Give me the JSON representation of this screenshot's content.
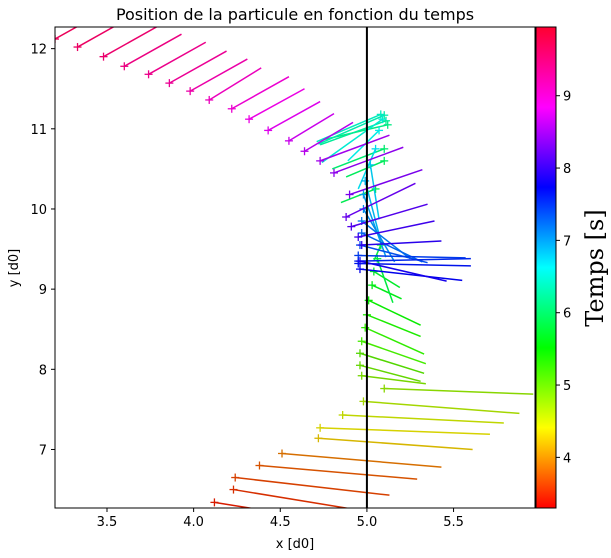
{
  "chart_data": {
    "type": "scatter",
    "title": "Position de la particule en fonction du temps",
    "xlabel": "x [d0]",
    "ylabel": "y [d0]",
    "xlim": [
      3.2,
      5.97
    ],
    "ylim": [
      6.27,
      12.27
    ],
    "xticks": [
      "3.5",
      "4.0",
      "4.5",
      "5.0",
      "5.5"
    ],
    "yticks": [
      "7",
      "8",
      "9",
      "10",
      "11",
      "12"
    ],
    "vline_x": 5.0,
    "marker": "+",
    "colorbar": {
      "label": "Temps [s]",
      "colormap": "hsv",
      "range": [
        3.3,
        9.95
      ],
      "ticks": [
        "4",
        "5",
        "6",
        "7",
        "8",
        "9"
      ]
    },
    "points": [
      {
        "t": 3.45,
        "x": 4.12,
        "y": 6.34,
        "dx": 1.07,
        "dy": -0.37
      },
      {
        "t": 3.55,
        "x": 4.23,
        "y": 6.5,
        "dx": 0.93,
        "dy": -0.33
      },
      {
        "t": 3.65,
        "x": 4.24,
        "y": 6.65,
        "dx": 0.89,
        "dy": -0.22
      },
      {
        "t": 3.75,
        "x": 4.38,
        "y": 6.8,
        "dx": 0.91,
        "dy": -0.17
      },
      {
        "t": 3.9,
        "x": 4.51,
        "y": 6.95,
        "dx": 0.92,
        "dy": -0.17
      },
      {
        "t": 4.3,
        "x": 4.72,
        "y": 7.14,
        "dx": 0.89,
        "dy": -0.14
      },
      {
        "t": 4.45,
        "x": 4.73,
        "y": 7.27,
        "dx": 0.98,
        "dy": -0.08
      },
      {
        "t": 4.6,
        "x": 4.86,
        "y": 7.43,
        "dx": 0.93,
        "dy": -0.1
      },
      {
        "t": 4.75,
        "x": 4.98,
        "y": 7.6,
        "dx": 0.9,
        "dy": -0.15
      },
      {
        "t": 4.9,
        "x": 5.1,
        "y": 7.76,
        "dx": 0.86,
        "dy": -0.07
      },
      {
        "t": 5.0,
        "x": 4.97,
        "y": 7.92,
        "dx": 0.37,
        "dy": -0.1
      },
      {
        "t": 5.1,
        "x": 4.96,
        "y": 8.05,
        "dx": 0.35,
        "dy": -0.2
      },
      {
        "t": 5.2,
        "x": 4.96,
        "y": 8.2,
        "dx": 0.37,
        "dy": -0.25
      },
      {
        "t": 5.3,
        "x": 4.97,
        "y": 8.35,
        "dx": 0.37,
        "dy": -0.28
      },
      {
        "t": 5.4,
        "x": 4.99,
        "y": 8.52,
        "dx": 0.34,
        "dy": -0.33
      },
      {
        "t": 5.5,
        "x": 5.0,
        "y": 8.68,
        "dx": 0.31,
        "dy": -0.27
      },
      {
        "t": 5.6,
        "x": 5.01,
        "y": 8.86,
        "dx": 0.3,
        "dy": -0.31
      },
      {
        "t": 5.75,
        "x": 5.03,
        "y": 9.05,
        "dx": 0.17,
        "dy": -0.17
      },
      {
        "t": 5.85,
        "x": 5.04,
        "y": 9.22,
        "dx": 0.15,
        "dy": -0.2
      },
      {
        "t": 5.95,
        "x": 5.06,
        "y": 9.38,
        "dx": 0.09,
        "dy": -0.55
      },
      {
        "t": 6.0,
        "x": 5.08,
        "y": 9.55,
        "dx": -0.04,
        "dy": -0.2
      },
      {
        "t": 6.05,
        "x": 5.05,
        "y": 10.25,
        "dx": -0.2,
        "dy": -0.17
      },
      {
        "t": 6.1,
        "x": 5.1,
        "y": 10.6,
        "dx": -0.22,
        "dy": -0.2
      },
      {
        "t": 6.2,
        "x": 5.1,
        "y": 10.75,
        "dx": -0.3,
        "dy": -0.25
      },
      {
        "t": 6.3,
        "x": 5.12,
        "y": 11.05,
        "dx": -0.36,
        "dy": -0.18
      },
      {
        "t": 6.4,
        "x": 5.11,
        "y": 11.1,
        "dx": -0.38,
        "dy": -0.3
      },
      {
        "t": 6.5,
        "x": 5.1,
        "y": 11.17,
        "dx": -0.38,
        "dy": -0.36
      },
      {
        "t": 6.6,
        "x": 5.08,
        "y": 11.18,
        "dx": -0.37,
        "dy": -0.34
      },
      {
        "t": 6.7,
        "x": 5.09,
        "y": 11.12,
        "dx": -0.35,
        "dy": -0.54
      },
      {
        "t": 6.8,
        "x": 5.07,
        "y": 10.98,
        "dx": -0.18,
        "dy": -0.38
      },
      {
        "t": 6.9,
        "x": 5.05,
        "y": 10.75,
        "dx": -0.1,
        "dy": -0.5
      },
      {
        "t": 7.0,
        "x": 5.02,
        "y": 10.55,
        "dx": 0.05,
        "dy": -0.68
      },
      {
        "t": 7.1,
        "x": 4.99,
        "y": 10.35,
        "dx": 0.09,
        "dy": -0.75
      },
      {
        "t": 7.2,
        "x": 4.98,
        "y": 10.18,
        "dx": 0.13,
        "dy": -0.78
      },
      {
        "t": 7.3,
        "x": 4.98,
        "y": 10.0,
        "dx": 0.18,
        "dy": -0.66
      },
      {
        "t": 7.4,
        "x": 4.97,
        "y": 9.85,
        "dx": 0.28,
        "dy": -0.47
      },
      {
        "t": 7.5,
        "x": 4.97,
        "y": 9.7,
        "dx": 0.35,
        "dy": -0.36
      },
      {
        "t": 7.6,
        "x": 4.96,
        "y": 9.55,
        "dx": 0.39,
        "dy": -0.22
      },
      {
        "t": 7.7,
        "x": 4.95,
        "y": 9.42,
        "dx": 0.62,
        "dy": -0.03
      },
      {
        "t": 7.8,
        "x": 4.95,
        "y": 9.35,
        "dx": 0.65,
        "dy": 0.03
      },
      {
        "t": 7.9,
        "x": 4.95,
        "y": 9.32,
        "dx": 0.65,
        "dy": -0.03
      },
      {
        "t": 8.0,
        "x": 4.96,
        "y": 9.25,
        "dx": 0.59,
        "dy": -0.14
      },
      {
        "t": 8.1,
        "x": 4.96,
        "y": 9.35,
        "dx": 0.5,
        "dy": -0.25
      },
      {
        "t": 8.2,
        "x": 4.97,
        "y": 9.55,
        "dx": 0.46,
        "dy": 0.05
      },
      {
        "t": 8.3,
        "x": 4.95,
        "y": 9.65,
        "dx": 0.44,
        "dy": 0.2
      },
      {
        "t": 8.4,
        "x": 4.91,
        "y": 9.78,
        "dx": 0.44,
        "dy": 0.28
      },
      {
        "t": 8.5,
        "x": 4.88,
        "y": 9.9,
        "dx": 0.4,
        "dy": 0.42
      },
      {
        "t": 8.6,
        "x": 4.9,
        "y": 10.18,
        "dx": 0.42,
        "dy": 0.31
      },
      {
        "t": 8.7,
        "x": 4.81,
        "y": 10.45,
        "dx": 0.4,
        "dy": 0.32
      },
      {
        "t": 8.8,
        "x": 4.73,
        "y": 10.6,
        "dx": 0.4,
        "dy": 0.32
      },
      {
        "t": 8.9,
        "x": 4.64,
        "y": 10.72,
        "dx": 0.28,
        "dy": 0.36
      },
      {
        "t": 9.0,
        "x": 4.55,
        "y": 10.85,
        "dx": 0.26,
        "dy": 0.34
      },
      {
        "t": 9.1,
        "x": 4.43,
        "y": 10.98,
        "dx": 0.3,
        "dy": 0.36
      },
      {
        "t": 9.2,
        "x": 4.32,
        "y": 11.12,
        "dx": 0.32,
        "dy": 0.38
      },
      {
        "t": 9.3,
        "x": 4.22,
        "y": 11.25,
        "dx": 0.33,
        "dy": 0.4
      },
      {
        "t": 9.4,
        "x": 4.09,
        "y": 11.36,
        "dx": 0.3,
        "dy": 0.4
      },
      {
        "t": 9.5,
        "x": 3.98,
        "y": 11.47,
        "dx": 0.33,
        "dy": 0.4
      },
      {
        "t": 9.6,
        "x": 3.86,
        "y": 11.57,
        "dx": 0.33,
        "dy": 0.4
      },
      {
        "t": 9.65,
        "x": 3.74,
        "y": 11.68,
        "dx": 0.33,
        "dy": 0.4
      },
      {
        "t": 9.7,
        "x": 3.6,
        "y": 11.78,
        "dx": 0.33,
        "dy": 0.4
      },
      {
        "t": 9.8,
        "x": 3.48,
        "y": 11.9,
        "dx": 0.33,
        "dy": 0.4
      },
      {
        "t": 9.85,
        "x": 3.33,
        "y": 12.02,
        "dx": 0.33,
        "dy": 0.4
      },
      {
        "t": 9.9,
        "x": 3.2,
        "y": 12.12,
        "dx": 0.33,
        "dy": 0.4
      }
    ]
  }
}
